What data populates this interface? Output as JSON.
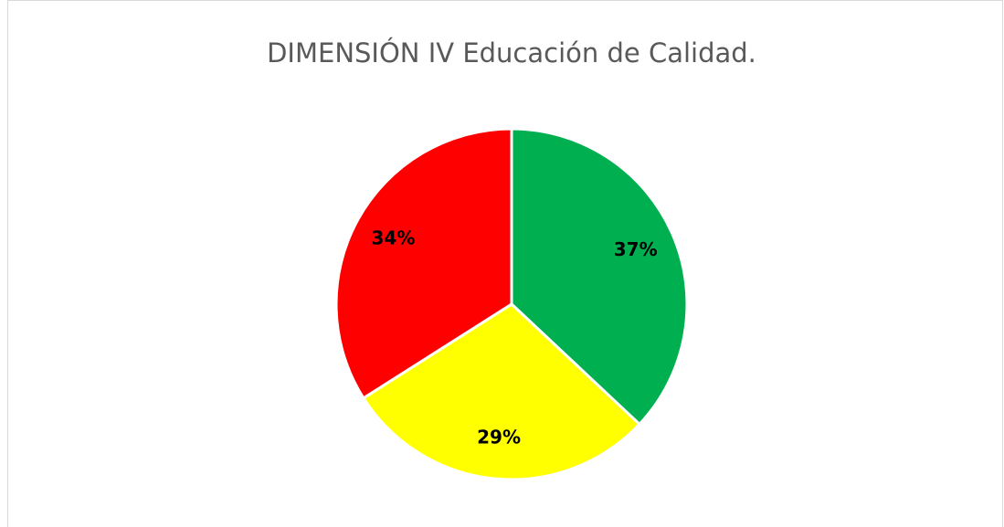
{
  "chart_data": {
    "type": "pie",
    "title": "DIMENSIÓN IV Educación de Calidad.",
    "values": [
      37,
      29,
      34
    ],
    "value_labels": [
      "37%",
      "29%",
      "34%"
    ],
    "colors": [
      "#00b050",
      "#ffff00",
      "#ff0000"
    ]
  }
}
